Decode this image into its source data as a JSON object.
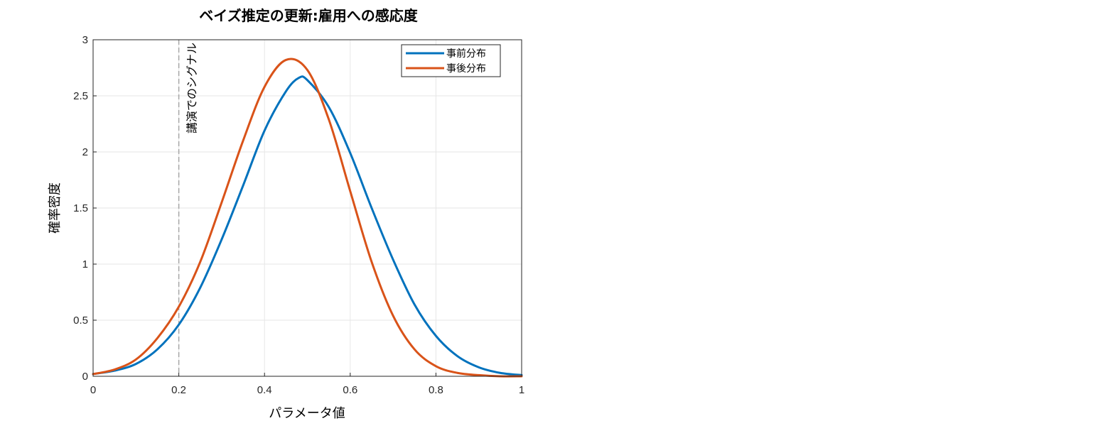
{
  "chart_data": {
    "type": "line",
    "title": "ベイズ推定の更新:雇用への感応度",
    "xlabel": "パラメータ値",
    "ylabel": "確率密度",
    "xlim": [
      0,
      1
    ],
    "ylim": [
      0,
      3
    ],
    "xticks": [
      "0",
      "0.2",
      "0.4",
      "0.6",
      "0.8",
      "1"
    ],
    "yticks": [
      "0",
      "0.5",
      "1",
      "1.5",
      "2",
      "2.5",
      "3"
    ],
    "grid": true,
    "legend_position": "top-right",
    "series": [
      {
        "name": "事前分布",
        "color": "#0072BD",
        "x": [
          0,
          0.05,
          0.1,
          0.15,
          0.2,
          0.25,
          0.3,
          0.35,
          0.4,
          0.45,
          0.48,
          0.5,
          0.55,
          0.6,
          0.65,
          0.7,
          0.75,
          0.8,
          0.85,
          0.9,
          0.95,
          1
        ],
        "values": [
          0.02,
          0.05,
          0.11,
          0.24,
          0.46,
          0.79,
          1.22,
          1.7,
          2.19,
          2.54,
          2.66,
          2.64,
          2.4,
          1.99,
          1.5,
          1.04,
          0.64,
          0.36,
          0.18,
          0.08,
          0.03,
          0.01
        ]
      },
      {
        "name": "事後分布",
        "color": "#D95319",
        "x": [
          0,
          0.05,
          0.1,
          0.15,
          0.2,
          0.25,
          0.3,
          0.35,
          0.4,
          0.45,
          0.5,
          0.55,
          0.6,
          0.65,
          0.7,
          0.75,
          0.8,
          0.85,
          0.9,
          0.95,
          1
        ],
        "values": [
          0.02,
          0.06,
          0.15,
          0.34,
          0.62,
          1.02,
          1.55,
          2.1,
          2.58,
          2.82,
          2.73,
          2.29,
          1.65,
          1.02,
          0.54,
          0.24,
          0.09,
          0.03,
          0.01,
          0.0,
          0.0
        ]
      }
    ],
    "annotations": [
      {
        "type": "vline",
        "x": 0.2,
        "style": "dashed",
        "color": "#A6A6A6",
        "label": "講演でのシグナル"
      }
    ]
  }
}
